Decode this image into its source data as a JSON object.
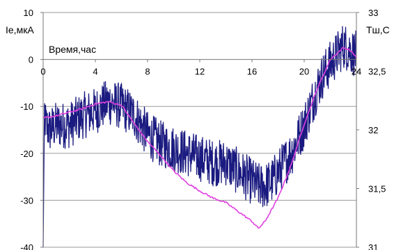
{
  "chart_data": {
    "type": "line",
    "xlabel": "Время,час",
    "ylabel": "Ie,мкА",
    "y2label": "Тш,С",
    "xlim": [
      0,
      24
    ],
    "ylim": [
      -40,
      10
    ],
    "y2lim": [
      31,
      33
    ],
    "x_ticks": [
      0,
      4,
      8,
      12,
      16,
      20,
      24
    ],
    "y_ticks": [
      10,
      0,
      -10,
      -20,
      -30,
      -40
    ],
    "y2_ticks": [
      "33",
      "32,5",
      "32",
      "31,5",
      "31"
    ],
    "y2_tick_values": [
      33,
      32.5,
      32,
      31.5,
      31
    ],
    "grid": "horizontal",
    "series": [
      {
        "axis": "left",
        "color": "#1a1a80",
        "noise": 2.5,
        "x": [
          0,
          0.2,
          0.5,
          1,
          2,
          3,
          4,
          4.5,
          5,
          5.5,
          6,
          7,
          7.5,
          8,
          9,
          10,
          11,
          12,
          13,
          14,
          14.5,
          15,
          15.5,
          16,
          16.5,
          17,
          17.5,
          18,
          18.5,
          19,
          19.5,
          20,
          20.5,
          21,
          21.5,
          22,
          22.5,
          23,
          23.5,
          24
        ],
        "values": [
          -8,
          -14,
          -15,
          -14,
          -14,
          -12,
          -11,
          -10,
          -9,
          -9.5,
          -10,
          -12,
          -14,
          -16,
          -18,
          -19,
          -20,
          -21,
          -22,
          -22,
          -23,
          -24,
          -25,
          -26,
          -27,
          -27,
          -26,
          -24,
          -22,
          -20,
          -17,
          -14,
          -10,
          -6,
          -3,
          -1,
          1,
          3,
          2,
          1
        ]
      },
      {
        "axis": "right",
        "color": "#e040e0",
        "x": [
          0,
          1,
          2,
          3,
          4,
          5,
          6,
          7,
          8,
          9,
          10,
          11,
          12,
          13,
          14,
          15,
          16,
          16.5,
          17,
          18,
          19,
          20,
          21,
          22,
          23,
          23.5,
          24
        ],
        "values": [
          32.1,
          32.12,
          32.15,
          32.18,
          32.22,
          32.24,
          32.21,
          32.05,
          31.9,
          31.78,
          31.65,
          31.55,
          31.48,
          31.42,
          31.38,
          31.3,
          31.22,
          31.16,
          31.22,
          31.42,
          31.7,
          32.05,
          32.35,
          32.6,
          32.7,
          32.68,
          32.62
        ]
      }
    ]
  }
}
